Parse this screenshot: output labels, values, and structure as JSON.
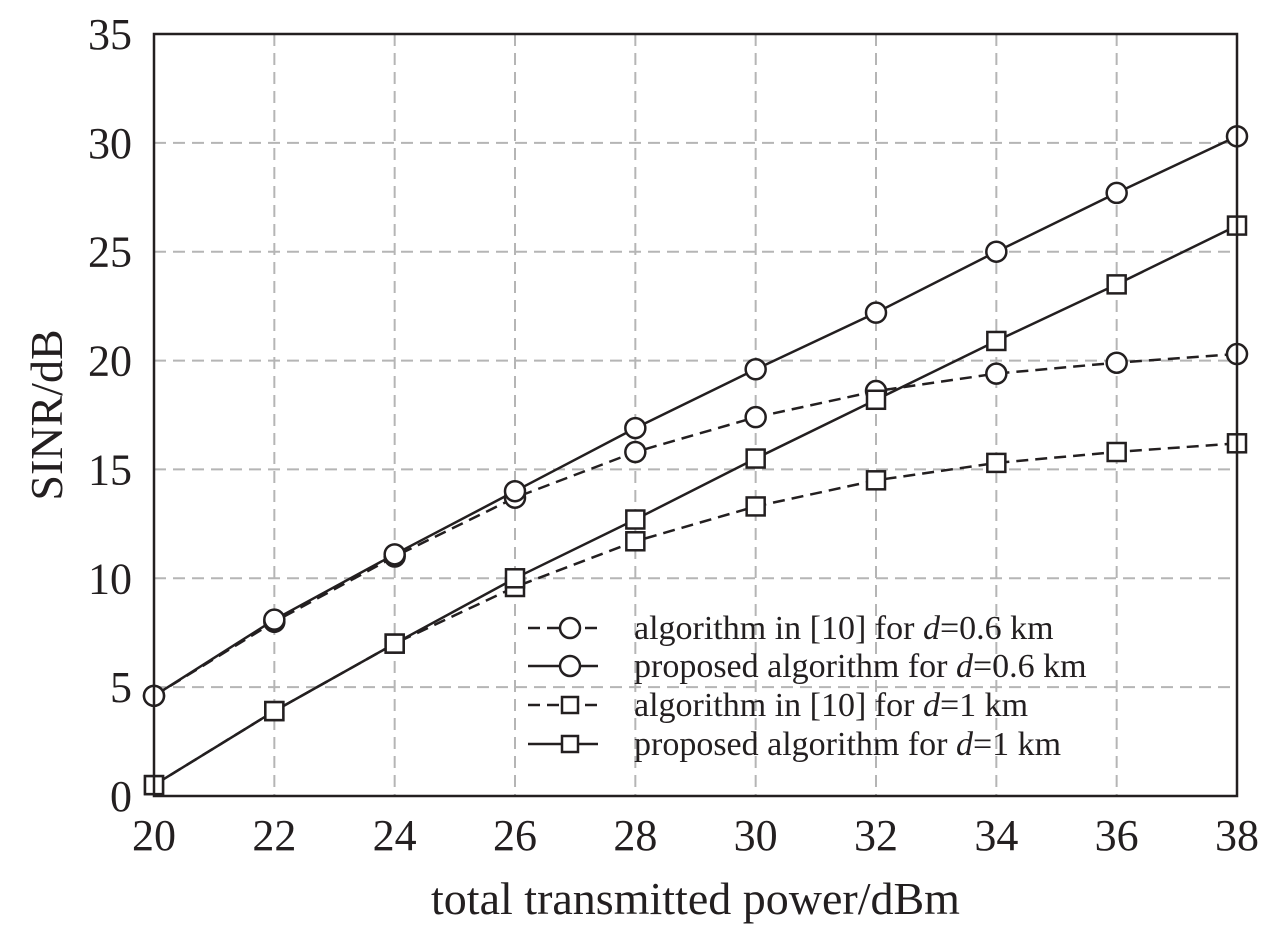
{
  "chart_data": {
    "type": "line",
    "xlabel": "total transmitted power/dBm",
    "ylabel": "SINR/dB",
    "xlim": [
      20,
      38
    ],
    "ylim": [
      0,
      35
    ],
    "xticks": [
      20,
      22,
      24,
      26,
      28,
      30,
      32,
      34,
      36,
      38
    ],
    "yticks": [
      0,
      5,
      10,
      15,
      20,
      25,
      30,
      35
    ],
    "grid": true,
    "legend_position": "bottom-right",
    "series": [
      {
        "name": "algorithm in [10] for d=0.6 km",
        "legend": {
          "prefix": "algorithm in [10] for ",
          "var": "d",
          "suffix": "=0.6 km"
        },
        "line": "dashed",
        "marker": "circle",
        "color": "#231f20",
        "x": [
          20,
          22,
          24,
          26,
          28,
          30,
          32,
          34,
          36,
          38
        ],
        "y": [
          4.6,
          8.0,
          11.0,
          13.7,
          15.8,
          17.4,
          18.6,
          19.4,
          19.9,
          20.3
        ]
      },
      {
        "name": "proposed algorithm for d=0.6 km",
        "legend": {
          "prefix": "proposed algorithm for ",
          "var": "d",
          "suffix": "=0.6 km"
        },
        "line": "solid",
        "marker": "circle",
        "color": "#231f20",
        "x": [
          20,
          22,
          24,
          26,
          28,
          30,
          32,
          34,
          36,
          38
        ],
        "y": [
          4.6,
          8.1,
          11.1,
          14.0,
          16.9,
          19.6,
          22.2,
          25.0,
          27.7,
          30.3
        ]
      },
      {
        "name": "algorithm in [10] for d=1 km",
        "legend": {
          "prefix": "algorithm in [10] for ",
          "var": "d",
          "suffix": "=1 km"
        },
        "line": "dashed",
        "marker": "square",
        "color": "#231f20",
        "x": [
          20,
          22,
          24,
          26,
          28,
          30,
          32,
          34,
          36,
          38
        ],
        "y": [
          0.5,
          3.9,
          7.0,
          9.6,
          11.7,
          13.3,
          14.5,
          15.3,
          15.8,
          16.2
        ]
      },
      {
        "name": "proposed algorithm for d=1 km",
        "legend": {
          "prefix": "proposed algorithm for ",
          "var": "d",
          "suffix": "=1 km"
        },
        "line": "solid",
        "marker": "square",
        "color": "#231f20",
        "x": [
          20,
          22,
          24,
          26,
          28,
          30,
          32,
          34,
          36,
          38
        ],
        "y": [
          0.5,
          3.9,
          7.0,
          10.0,
          12.7,
          15.5,
          18.2,
          20.9,
          23.5,
          26.2
        ]
      }
    ]
  }
}
